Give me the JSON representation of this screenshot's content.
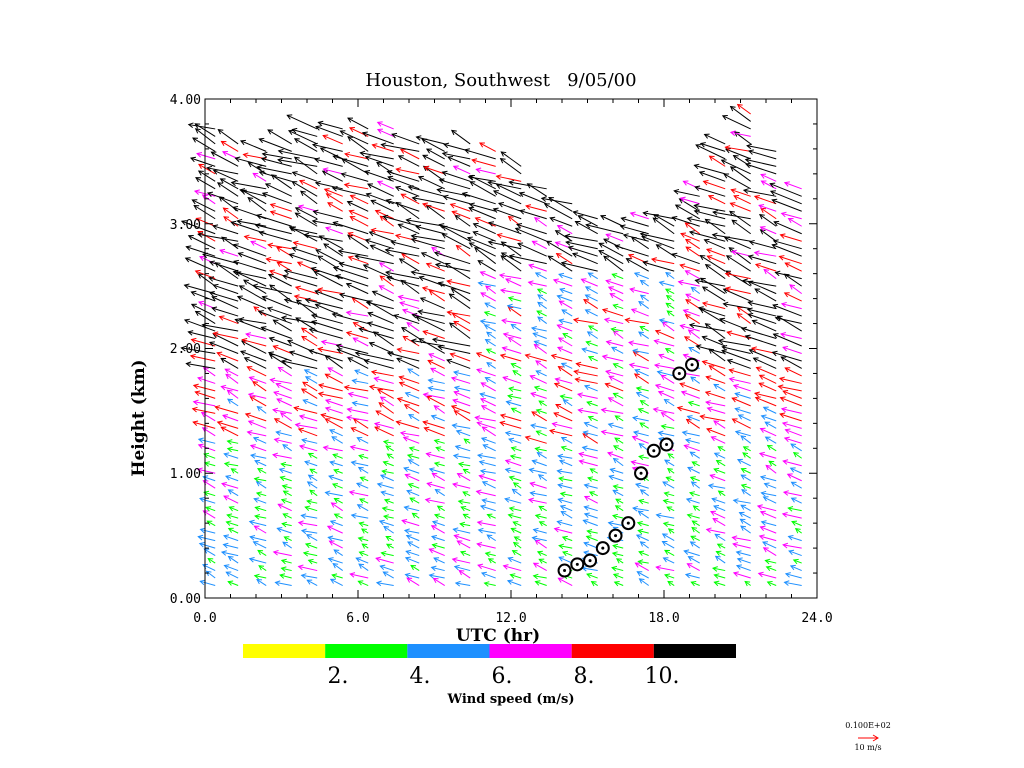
{
  "chart_data": {
    "type": "wind-profiler-time-height",
    "title": "Houston, Southwest   9/05/00",
    "xlabel": "UTC (hr)",
    "ylabel": "Height (km)",
    "xlim": [
      0,
      24
    ],
    "ylim": [
      0,
      4
    ],
    "x_ticks": [
      "0.0",
      "6.0",
      "12.0",
      "18.0",
      "24.0"
    ],
    "x_tick_values": [
      0,
      6,
      12,
      18,
      24
    ],
    "y_ticks": [
      "0.00",
      "1.00",
      "2.00",
      "3.00",
      "4.00"
    ],
    "y_tick_values": [
      0,
      1,
      2,
      3,
      4
    ],
    "vector_columns_utc": [
      0.4,
      1.3,
      2.4,
      3.4,
      4.4,
      5.4,
      6.4,
      7.4,
      8.4,
      9.4,
      10.4,
      11.4,
      12.4,
      13.4,
      14.4,
      15.4,
      16.4,
      17.4,
      18.4,
      19.4,
      20.4,
      21.4,
      22.4,
      23.4
    ],
    "vector_max_height_km": [
      3.8,
      3.7,
      3.6,
      3.7,
      3.8,
      3.8,
      3.8,
      3.8,
      3.7,
      3.7,
      3.7,
      3.6,
      3.5,
      3.3,
      3.2,
      3.1,
      3.0,
      3.1,
      3.1,
      3.3,
      3.7,
      3.9,
      3.6,
      3.3
    ],
    "boundary_layer_top_markers": [
      {
        "utc": 14.1,
        "height_km": 0.22
      },
      {
        "utc": 14.6,
        "height_km": 0.27
      },
      {
        "utc": 15.1,
        "height_km": 0.3
      },
      {
        "utc": 15.6,
        "height_km": 0.4
      },
      {
        "utc": 16.1,
        "height_km": 0.5
      },
      {
        "utc": 16.6,
        "height_km": 0.6
      },
      {
        "utc": 17.1,
        "height_km": 1.0
      },
      {
        "utc": 17.6,
        "height_km": 1.18
      },
      {
        "utc": 18.1,
        "height_km": 1.23
      },
      {
        "utc": 18.6,
        "height_km": 1.8
      },
      {
        "utc": 19.1,
        "height_km": 1.87
      }
    ],
    "colorbar": {
      "title": "Wind speed (m/s)",
      "bin_edges_ms": [
        0,
        2,
        4,
        6,
        8,
        10,
        12
      ],
      "colors": [
        "#ffff00",
        "#00ff00",
        "#1e90ff",
        "#ff00ff",
        "#ff0000",
        "#000000"
      ],
      "tick_labels": [
        "2.",
        "4.",
        "6.",
        "8.",
        "10."
      ],
      "tick_values": [
        2,
        4,
        6,
        8,
        10
      ]
    },
    "reference_vector": {
      "top_label": "0.100E+02",
      "bottom_label": "10 m/s",
      "color": "#ff0000"
    }
  }
}
